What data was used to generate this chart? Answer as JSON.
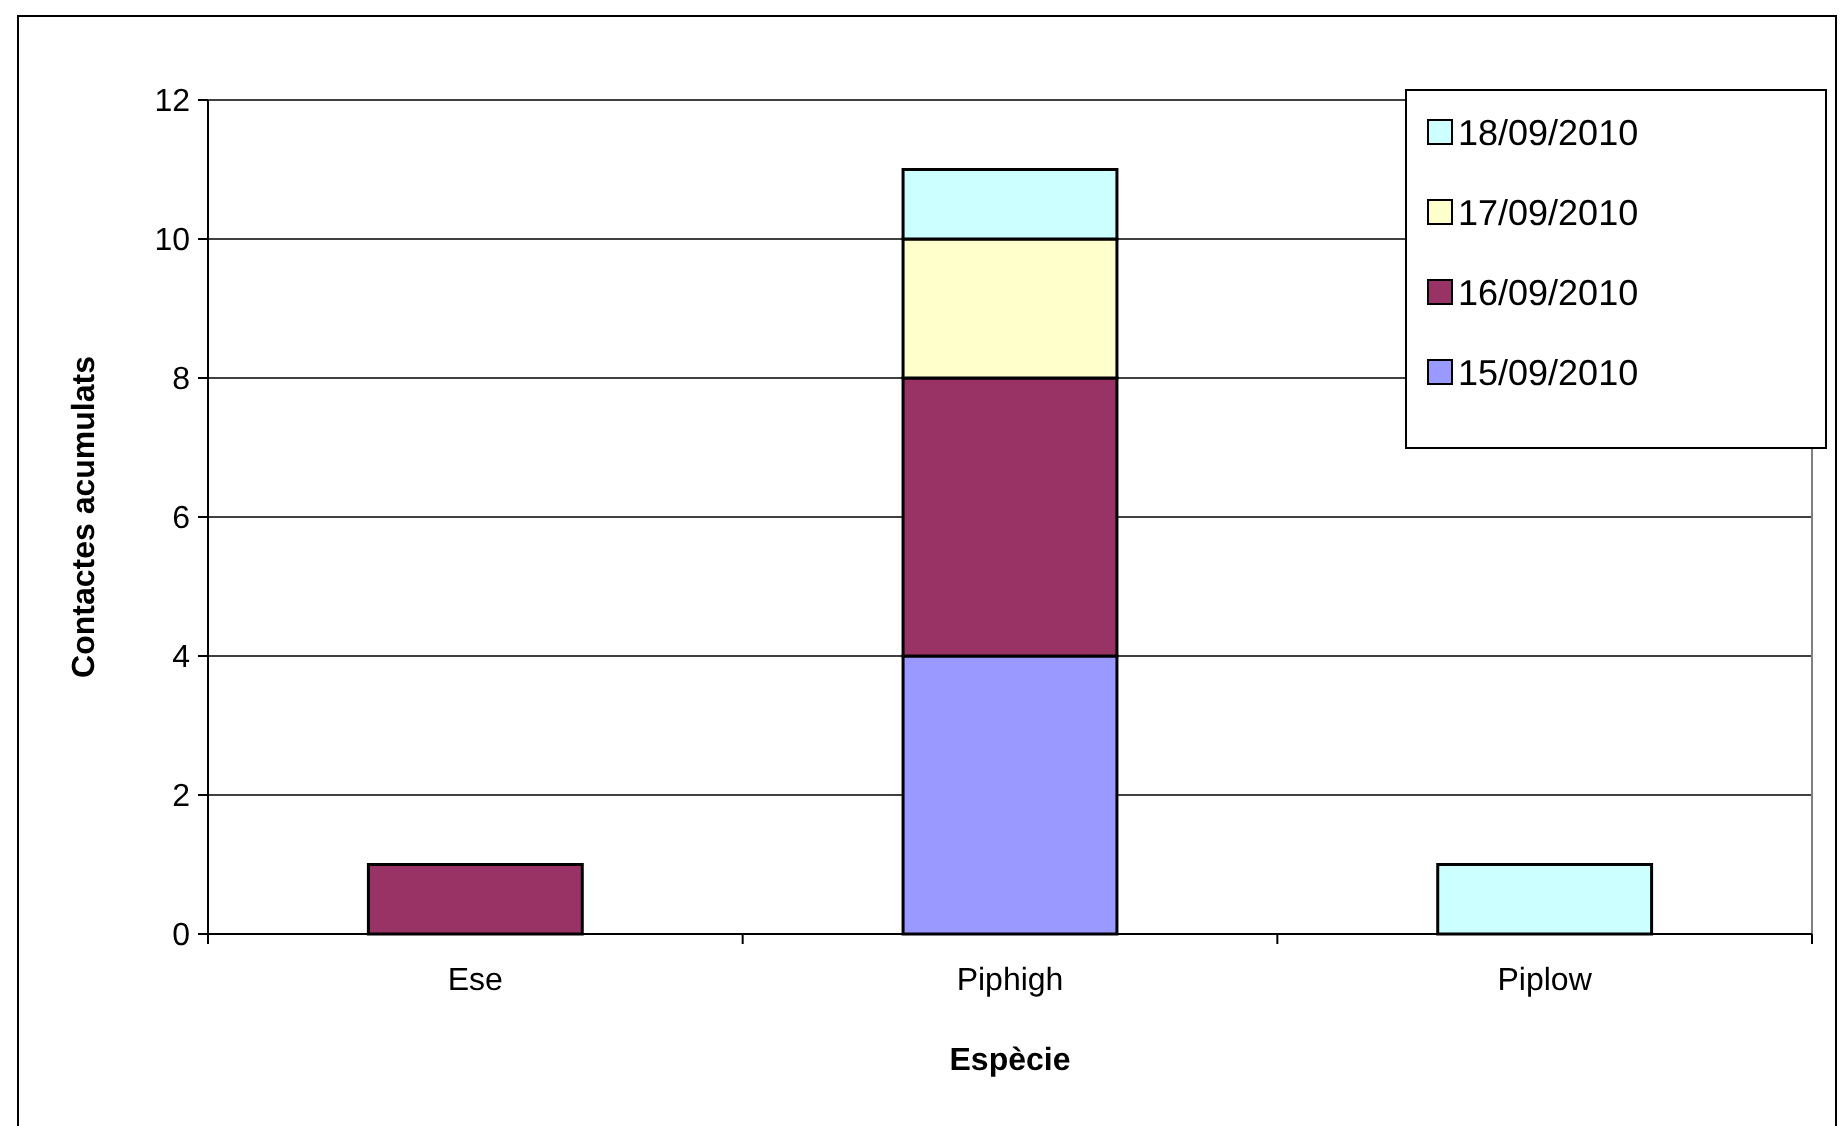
{
  "chart_data": {
    "type": "bar",
    "stacked": true,
    "xlabel": "Espècie",
    "ylabel": "Contactes acumulats",
    "categories": [
      "Ese",
      "Piphigh",
      "Piplow"
    ],
    "series": [
      {
        "name": "15/09/2010",
        "color": "#9999ff",
        "values": [
          null,
          4,
          null
        ]
      },
      {
        "name": "16/09/2010",
        "color": "#993366",
        "values": [
          1,
          4,
          null
        ]
      },
      {
        "name": "17/09/2010",
        "color": "#ffffcc",
        "values": [
          null,
          2,
          null
        ]
      },
      {
        "name": "18/09/2010",
        "color": "#ccffff",
        "values": [
          null,
          1,
          1
        ]
      }
    ],
    "ylim": [
      0,
      12
    ],
    "yticks": [
      0,
      2,
      4,
      6,
      8,
      10,
      12
    ],
    "grid": "y",
    "legend": "top right"
  }
}
